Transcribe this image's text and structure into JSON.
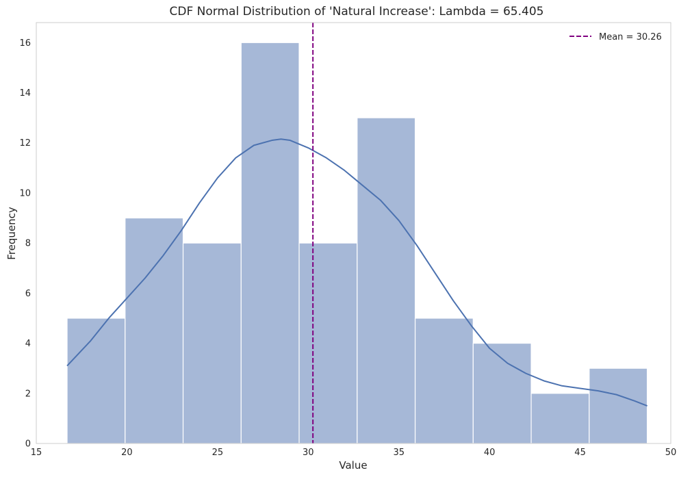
{
  "chart_data": {
    "type": "bar",
    "title": "CDF Normal Distribution of 'Natural Increase': Lambda = 65.405",
    "xlabel": "Value",
    "ylabel": "Frequency",
    "xlim": [
      15,
      50
    ],
    "ylim": [
      0,
      16.8
    ],
    "x_ticks": [
      15,
      20,
      25,
      30,
      35,
      40,
      45,
      50
    ],
    "y_ticks": [
      0,
      2,
      4,
      6,
      8,
      10,
      12,
      14,
      16
    ],
    "grid": false,
    "bins": [
      {
        "start": 16.7,
        "end": 19.9,
        "count": 5
      },
      {
        "start": 19.9,
        "end": 23.1,
        "count": 9
      },
      {
        "start": 23.1,
        "end": 26.3,
        "count": 8
      },
      {
        "start": 26.3,
        "end": 29.5,
        "count": 16
      },
      {
        "start": 29.5,
        "end": 32.7,
        "count": 8
      },
      {
        "start": 32.7,
        "end": 35.9,
        "count": 13
      },
      {
        "start": 35.9,
        "end": 39.1,
        "count": 5
      },
      {
        "start": 39.1,
        "end": 42.3,
        "count": 4
      },
      {
        "start": 42.3,
        "end": 45.5,
        "count": 2
      },
      {
        "start": 45.5,
        "end": 48.7,
        "count": 3
      }
    ],
    "kde": {
      "x": [
        16.7,
        18,
        19,
        20,
        21,
        22,
        23,
        24,
        25,
        26,
        27,
        28,
        28.5,
        29,
        30,
        31,
        32,
        33,
        34,
        35,
        36,
        37,
        38,
        39,
        40,
        41,
        42,
        43,
        44,
        45,
        46,
        47,
        48,
        48.7
      ],
      "y": [
        3.1,
        4.1,
        5.0,
        5.8,
        6.6,
        7.5,
        8.5,
        9.6,
        10.6,
        11.4,
        11.9,
        12.1,
        12.15,
        12.1,
        11.8,
        11.4,
        10.9,
        10.3,
        9.7,
        8.9,
        7.9,
        6.8,
        5.7,
        4.7,
        3.8,
        3.2,
        2.8,
        2.5,
        2.3,
        2.2,
        2.1,
        1.95,
        1.7,
        1.5
      ]
    },
    "mean_line": {
      "value": 30.26,
      "label": "Mean = 30.26"
    },
    "legend_position": "top-right",
    "colors": {
      "bar_fill": "#a6b8d7",
      "bar_edge": "#ffffff",
      "kde_line": "#4c72b0",
      "mean_line": "#800080",
      "axis": "#cccccc",
      "text": "#262626"
    }
  }
}
